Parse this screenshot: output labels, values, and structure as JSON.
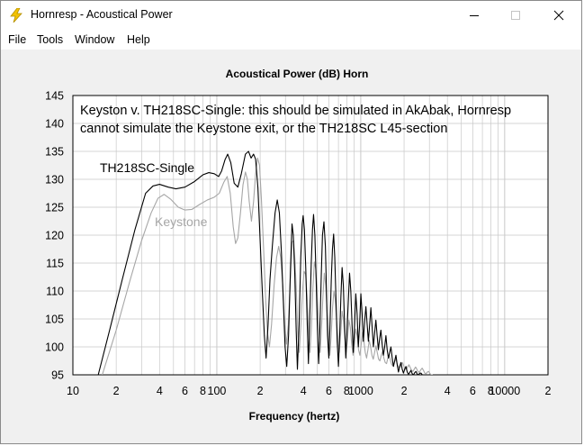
{
  "window": {
    "title": "Hornresp - Acoustical Power"
  },
  "menu": [
    "File",
    "Tools",
    "Window",
    "Help"
  ],
  "colors": {
    "series_1": "#000000",
    "series_2": "#a6a6a6",
    "grid": "#c8c8c8",
    "plot_bg": "#ffffff",
    "client_bg": "#f0f0f0"
  },
  "chart_data": {
    "type": "line",
    "title": "Acoustical Power (dB)    Horn",
    "xlabel": "Frequency (hertz)",
    "ylabel": "",
    "x_scale": "log",
    "xlim": [
      10,
      20000
    ],
    "ylim": [
      95,
      145
    ],
    "grid": true,
    "y_ticks": [
      145,
      140,
      135,
      130,
      125,
      120,
      115,
      110,
      105,
      100,
      95
    ],
    "x_tick_labels": [
      {
        "x": 10,
        "label": "10"
      },
      {
        "x": 20,
        "label": "2"
      },
      {
        "x": 40,
        "label": "4"
      },
      {
        "x": 60,
        "label": "6"
      },
      {
        "x": 80,
        "label": "8"
      },
      {
        "x": 100,
        "label": "100"
      },
      {
        "x": 200,
        "label": "2"
      },
      {
        "x": 400,
        "label": "4"
      },
      {
        "x": 600,
        "label": "6"
      },
      {
        "x": 800,
        "label": "8"
      },
      {
        "x": 1000,
        "label": "1000"
      },
      {
        "x": 2000,
        "label": "2"
      },
      {
        "x": 4000,
        "label": "4"
      },
      {
        "x": 6000,
        "label": "6"
      },
      {
        "x": 8000,
        "label": "8"
      },
      {
        "x": 10000,
        "label": "10000"
      },
      {
        "x": 20000,
        "label": "2"
      }
    ],
    "annotations": [
      "Keyston v. TH218SC-Single: this should be simulated in AkAbak, Hornresp",
      "cannot simulate the Keystone exit, or the TH218SC L45-section"
    ],
    "series_labels": [
      "TH218SC-Single",
      "Keystone"
    ],
    "series": [
      {
        "name": "TH218SC-Single",
        "color": "#000000",
        "points": [
          [
            15,
            95
          ],
          [
            18,
            103
          ],
          [
            22,
            112
          ],
          [
            27,
            121
          ],
          [
            32,
            127.5
          ],
          [
            36,
            128.8
          ],
          [
            40,
            129.1
          ],
          [
            46,
            128.6
          ],
          [
            52,
            128.3
          ],
          [
            60,
            128.6
          ],
          [
            70,
            129.6
          ],
          [
            80,
            130.8
          ],
          [
            88,
            131.2
          ],
          [
            96,
            131
          ],
          [
            103,
            130.5
          ],
          [
            108,
            131.5
          ],
          [
            114,
            133.5
          ],
          [
            119,
            134.5
          ],
          [
            125,
            133
          ],
          [
            132,
            129.3
          ],
          [
            140,
            128.6
          ],
          [
            148,
            131
          ],
          [
            158,
            134.5
          ],
          [
            166,
            135
          ],
          [
            173,
            133.8
          ],
          [
            180,
            134.5
          ],
          [
            186,
            133.6
          ],
          [
            193,
            128.5
          ],
          [
            200,
            119
          ],
          [
            207,
            110
          ],
          [
            214,
            102
          ],
          [
            220,
            98
          ],
          [
            227,
            104
          ],
          [
            234,
            112
          ],
          [
            243,
            118
          ],
          [
            254,
            124
          ],
          [
            263,
            126.3
          ],
          [
            272,
            124
          ],
          [
            281,
            117
          ],
          [
            290,
            108
          ],
          [
            298,
            100
          ],
          [
            306,
            96.5
          ],
          [
            315,
            102
          ],
          [
            325,
            114
          ],
          [
            333,
            122
          ],
          [
            340,
            120
          ],
          [
            348,
            113
          ],
          [
            356,
            103
          ],
          [
            363,
            96
          ],
          [
            373,
            104
          ],
          [
            383,
            116
          ],
          [
            392,
            122
          ],
          [
            398,
            123.5
          ],
          [
            406,
            121
          ],
          [
            415,
            114
          ],
          [
            425,
            104
          ],
          [
            433,
            97
          ],
          [
            442,
            105
          ],
          [
            453,
            115
          ],
          [
            462,
            121
          ],
          [
            470,
            123.7
          ],
          [
            480,
            120
          ],
          [
            490,
            112
          ],
          [
            500,
            103
          ],
          [
            510,
            97
          ],
          [
            520,
            103
          ],
          [
            532,
            113
          ],
          [
            542,
            120
          ],
          [
            555,
            122.4
          ],
          [
            568,
            118
          ],
          [
            578,
            110
          ],
          [
            588,
            102
          ],
          [
            600,
            98
          ],
          [
            612,
            104
          ],
          [
            624,
            112
          ],
          [
            636,
            117.5
          ],
          [
            648,
            120.2
          ],
          [
            660,
            116
          ],
          [
            672,
            109
          ],
          [
            686,
            101
          ],
          [
            700,
            96.5
          ],
          [
            714,
            102
          ],
          [
            728,
            109
          ],
          [
            742,
            114.2
          ],
          [
            757,
            111
          ],
          [
            772,
            104
          ],
          [
            787,
            98
          ],
          [
            803,
            103
          ],
          [
            819,
            108
          ],
          [
            836,
            113.2
          ],
          [
            853,
            110
          ],
          [
            870,
            104
          ],
          [
            888,
            99
          ],
          [
            906,
            104
          ],
          [
            924,
            109.5
          ],
          [
            943,
            106
          ],
          [
            962,
            100
          ],
          [
            982,
            104
          ],
          [
            1002,
            109.5
          ],
          [
            1022,
            106
          ],
          [
            1043,
            101
          ],
          [
            1064,
            104.5
          ],
          [
            1086,
            107.2
          ],
          [
            1108,
            104
          ],
          [
            1130,
            101
          ],
          [
            1153,
            104
          ],
          [
            1176,
            107
          ],
          [
            1200,
            103.5
          ],
          [
            1224,
            100
          ],
          [
            1249,
            102.5
          ],
          [
            1274,
            104.8
          ],
          [
            1300,
            102
          ],
          [
            1326,
            99.5
          ],
          [
            1353,
            101.5
          ],
          [
            1380,
            103
          ],
          [
            1408,
            100.5
          ],
          [
            1437,
            98.5
          ],
          [
            1466,
            100
          ],
          [
            1496,
            102
          ],
          [
            1526,
            99.5
          ],
          [
            1557,
            98
          ],
          [
            1589,
            99
          ],
          [
            1621,
            100
          ],
          [
            1654,
            98
          ],
          [
            1687,
            96.5
          ],
          [
            1721,
            97.5
          ],
          [
            1756,
            98.5
          ],
          [
            1792,
            96.8
          ],
          [
            1828,
            95.5
          ],
          [
            1865,
            96.5
          ],
          [
            1903,
            97.2
          ],
          [
            1941,
            96
          ],
          [
            1980,
            95.3
          ],
          [
            2020,
            96
          ],
          [
            2061,
            96.5
          ],
          [
            2103,
            95.5
          ],
          [
            2145,
            95.1
          ],
          [
            2189,
            95.4
          ],
          [
            2233,
            95.8
          ],
          [
            2278,
            95.2
          ],
          [
            2325,
            95
          ],
          [
            2372,
            95.4
          ],
          [
            2420,
            95.6
          ],
          [
            2469,
            95.1
          ],
          [
            2519,
            95
          ],
          [
            2570,
            95.3
          ],
          [
            2622,
            95.3
          ],
          [
            2675,
            95
          ],
          [
            2730,
            95
          ]
        ]
      },
      {
        "name": "Keystone",
        "color": "#a6a6a6",
        "points": [
          [
            16,
            95
          ],
          [
            20,
            103
          ],
          [
            25,
            112
          ],
          [
            30,
            119
          ],
          [
            35,
            124
          ],
          [
            39,
            126.6
          ],
          [
            43,
            127.3
          ],
          [
            48,
            126.4
          ],
          [
            54,
            125
          ],
          [
            60,
            124.5
          ],
          [
            67,
            124.6
          ],
          [
            76,
            125.5
          ],
          [
            86,
            126.3
          ],
          [
            96,
            126.8
          ],
          [
            104,
            127.5
          ],
          [
            112,
            129.5
          ],
          [
            118,
            130.5
          ],
          [
            124,
            127.5
          ],
          [
            130,
            121.5
          ],
          [
            135,
            118.5
          ],
          [
            140,
            119.5
          ],
          [
            146,
            124
          ],
          [
            152,
            129
          ],
          [
            158,
            131.3
          ],
          [
            163,
            130
          ],
          [
            168,
            126
          ],
          [
            174,
            122.5
          ],
          [
            180,
            126
          ],
          [
            186,
            131
          ],
          [
            192,
            133.8
          ],
          [
            198,
            132.5
          ],
          [
            204,
            126.5
          ],
          [
            211,
            118
          ],
          [
            218,
            109
          ],
          [
            225,
            102.5
          ],
          [
            232,
            100
          ],
          [
            240,
            104
          ],
          [
            250,
            111
          ],
          [
            260,
            116
          ],
          [
            269,
            118
          ],
          [
            278,
            116
          ],
          [
            287,
            111
          ],
          [
            296,
            104
          ],
          [
            305,
            100.5
          ],
          [
            314,
            104
          ],
          [
            324,
            112
          ],
          [
            333,
            118.8
          ],
          [
            342,
            119
          ],
          [
            350,
            115
          ],
          [
            358,
            109
          ],
          [
            366,
            102
          ],
          [
            374,
            99
          ],
          [
            384,
            104
          ],
          [
            394,
            110
          ],
          [
            404,
            113.5
          ],
          [
            414,
            113
          ],
          [
            424,
            109
          ],
          [
            434,
            103
          ],
          [
            444,
            99
          ],
          [
            454,
            103.5
          ],
          [
            465,
            110.5
          ],
          [
            476,
            115.2
          ],
          [
            487,
            114
          ],
          [
            498,
            109.5
          ],
          [
            510,
            104
          ],
          [
            522,
            99
          ],
          [
            534,
            103.5
          ],
          [
            546,
            109
          ],
          [
            558,
            113.2
          ],
          [
            571,
            111
          ],
          [
            584,
            106
          ],
          [
            597,
            101
          ],
          [
            610,
            98.5
          ],
          [
            623,
            102
          ],
          [
            637,
            107
          ],
          [
            651,
            110
          ],
          [
            665,
            108.5
          ],
          [
            680,
            104.5
          ],
          [
            695,
            100.5
          ],
          [
            710,
            99
          ],
          [
            726,
            102.5
          ],
          [
            742,
            106.4
          ],
          [
            758,
            105
          ],
          [
            775,
            101.5
          ],
          [
            792,
            99
          ],
          [
            810,
            101.5
          ],
          [
            828,
            104.8
          ],
          [
            846,
            103.5
          ],
          [
            865,
            100.5
          ],
          [
            884,
            98.5
          ],
          [
            904,
            100.5
          ],
          [
            924,
            103.2
          ],
          [
            944,
            102
          ],
          [
            965,
            99.5
          ],
          [
            986,
            98.5
          ],
          [
            1008,
            100.5
          ],
          [
            1030,
            102.6
          ],
          [
            1052,
            101
          ],
          [
            1075,
            99
          ],
          [
            1098,
            98
          ],
          [
            1122,
            99.5
          ],
          [
            1146,
            101.2
          ],
          [
            1171,
            100
          ],
          [
            1196,
            98.5
          ],
          [
            1222,
            97.8
          ],
          [
            1248,
            99
          ],
          [
            1275,
            100.2
          ],
          [
            1302,
            99
          ],
          [
            1330,
            97.8
          ],
          [
            1359,
            97.5
          ],
          [
            1388,
            98.5
          ],
          [
            1418,
            99.2
          ],
          [
            1448,
            98
          ],
          [
            1479,
            97.2
          ],
          [
            1511,
            97
          ],
          [
            1543,
            98
          ],
          [
            1576,
            98.5
          ],
          [
            1610,
            97.5
          ],
          [
            1644,
            96.8
          ],
          [
            1679,
            96.6
          ],
          [
            1715,
            97.3
          ],
          [
            1752,
            97.8
          ],
          [
            1789,
            97
          ],
          [
            1827,
            96.4
          ],
          [
            1866,
            96.3
          ],
          [
            1906,
            96.8
          ],
          [
            1947,
            97.2
          ],
          [
            1988,
            96.6
          ],
          [
            2031,
            96
          ],
          [
            2074,
            96
          ],
          [
            2118,
            96.4
          ],
          [
            2163,
            96.8
          ],
          [
            2209,
            96.3
          ],
          [
            2256,
            95.8
          ],
          [
            2304,
            95.6
          ],
          [
            2353,
            96
          ],
          [
            2403,
            96.4
          ],
          [
            2454,
            96
          ],
          [
            2506,
            95.5
          ],
          [
            2560,
            95.5
          ],
          [
            2614,
            95.9
          ],
          [
            2670,
            96.2
          ],
          [
            2727,
            95.8
          ],
          [
            2785,
            95.3
          ],
          [
            2844,
            95.2
          ],
          [
            2904,
            95.5
          ],
          [
            2966,
            95.6
          ],
          [
            3029,
            95.2
          ],
          [
            3094,
            95
          ],
          [
            3160,
            95
          ]
        ]
      }
    ]
  }
}
